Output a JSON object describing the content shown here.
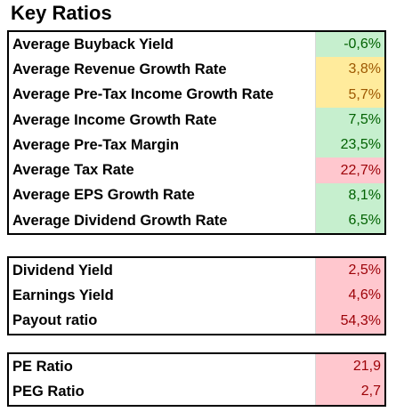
{
  "title": "Key Ratios",
  "groups": [
    {
      "rows": [
        {
          "label": "Average Buyback Yield",
          "value": "-0,6%",
          "status": "green"
        },
        {
          "label": "Average Revenue Growth Rate",
          "value": "3,8%",
          "status": "yellow"
        },
        {
          "label": "Average Pre-Tax Income Growth Rate",
          "value": "5,7%",
          "status": "yellow"
        },
        {
          "label": "Average Income Growth Rate",
          "value": "7,5%",
          "status": "green"
        },
        {
          "label": "Average Pre-Tax Margin",
          "value": "23,5%",
          "status": "green"
        },
        {
          "label": "Average Tax Rate",
          "value": "22,7%",
          "status": "red"
        },
        {
          "label": "Average EPS Growth Rate",
          "value": "8,1%",
          "status": "green"
        },
        {
          "label": "Average Dividend Growth Rate",
          "value": "6,5%",
          "status": "green"
        }
      ]
    },
    {
      "rows": [
        {
          "label": "Dividend Yield",
          "value": "2,5%",
          "status": "red"
        },
        {
          "label": "Earnings Yield",
          "value": "4,6%",
          "status": "red"
        },
        {
          "label": "Payout ratio",
          "value": "54,3%",
          "status": "red"
        }
      ]
    },
    {
      "rows": [
        {
          "label": "PE Ratio",
          "value": "21,9",
          "status": "red"
        },
        {
          "label": "PEG Ratio",
          "value": "2,7",
          "status": "red"
        }
      ]
    }
  ],
  "colors": {
    "green_fill": "#c6efce",
    "green_text": "#006100",
    "yellow_fill": "#ffeb9c",
    "yellow_text": "#9c5700",
    "red_fill": "#ffc7ce",
    "red_text": "#9c0006"
  }
}
